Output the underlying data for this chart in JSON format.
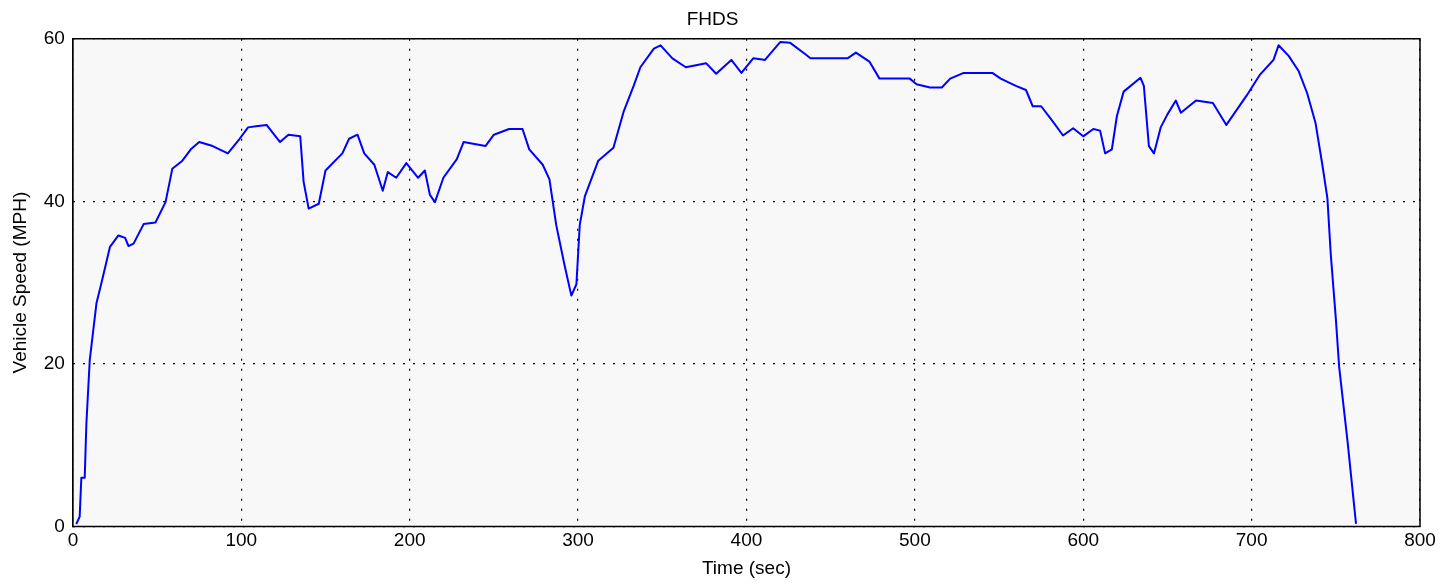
{
  "chart_data": {
    "type": "line",
    "title": "FHDS",
    "xlabel": "Time (sec)",
    "ylabel": "Vehicle Speed (MPH)",
    "xlim": [
      0,
      800
    ],
    "xticks": [
      0,
      100,
      200,
      300,
      400,
      500,
      600,
      700,
      800
    ],
    "ylim": [
      0,
      60
    ],
    "yticks": [
      0,
      20,
      40,
      60
    ],
    "grid": true,
    "line_style": "solid",
    "marker": "none",
    "series": [
      {
        "color": "#0000ff",
        "x": [
          2,
          4,
          5,
          7,
          8,
          10,
          12,
          14,
          17,
          22,
          27,
          31,
          33,
          36,
          42,
          49,
          55,
          59,
          65,
          70,
          75,
          83,
          92,
          99,
          104,
          115,
          123,
          128,
          135,
          137,
          140,
          146,
          150,
          160,
          164,
          169,
          173,
          179,
          184,
          187,
          192,
          198,
          205,
          209,
          212,
          215,
          220,
          228,
          232,
          245,
          250,
          259,
          267,
          271,
          279,
          283,
          287,
          292,
          296,
          299,
          301,
          304,
          312,
          321,
          327,
          333,
          337,
          345,
          349,
          356,
          364,
          376,
          382,
          391,
          397,
          404,
          411,
          420,
          426,
          435,
          438,
          448,
          460,
          465,
          473,
          479,
          497,
          501,
          509,
          516,
          521,
          529,
          546,
          551,
          560,
          566,
          570,
          575,
          582,
          588,
          594,
          600,
          606,
          610,
          613,
          617,
          620,
          624,
          634,
          636,
          639,
          642,
          646,
          650,
          655,
          658,
          667,
          677,
          685,
          697,
          705,
          713,
          716,
          722,
          728,
          733,
          738,
          742,
          745,
          747,
          750,
          752,
          757,
          762
        ],
        "values": [
          0.3,
          1.2,
          6,
          6,
          12.7,
          20.5,
          24,
          27.5,
          30,
          34.4,
          35.8,
          35.5,
          34.5,
          34.8,
          37.2,
          37.4,
          39.9,
          44,
          45,
          46.4,
          47.3,
          46.8,
          45.9,
          47.7,
          49.1,
          49.4,
          47.3,
          48.2,
          48,
          42.4,
          39.1,
          39.7,
          43.8,
          45.9,
          47.7,
          48.2,
          45.9,
          44.5,
          41.3,
          43.6,
          42.9,
          44.7,
          42.9,
          43.8,
          40.8,
          39.9,
          42.9,
          45.2,
          47.3,
          46.8,
          48.2,
          48.9,
          48.9,
          46.4,
          44.5,
          42.7,
          37.1,
          32.1,
          28.4,
          29.8,
          37.1,
          40.6,
          45,
          46.6,
          51,
          54.2,
          56.5,
          58.8,
          59.2,
          57.6,
          56.5,
          57,
          55.7,
          57.4,
          55.8,
          57.6,
          57.4,
          59.6,
          59.5,
          58.1,
          57.6,
          57.6,
          57.6,
          58.3,
          57.2,
          55.1,
          55.1,
          54.4,
          54,
          54,
          55.1,
          55.8,
          55.8,
          55.1,
          54.2,
          53.7,
          51.7,
          51.7,
          49.8,
          48.1,
          49,
          48,
          48.9,
          48.7,
          45.9,
          46.4,
          50.5,
          53.5,
          55.2,
          54.2,
          46.8,
          45.9,
          49.1,
          50.7,
          52.4,
          50.9,
          52.4,
          52.1,
          49.4,
          53,
          55.6,
          57.4,
          59.2,
          57.9,
          56,
          53.3,
          49.6,
          44.5,
          40.4,
          33.5,
          25.6,
          19.6,
          10.4,
          0.3
        ]
      }
    ]
  }
}
